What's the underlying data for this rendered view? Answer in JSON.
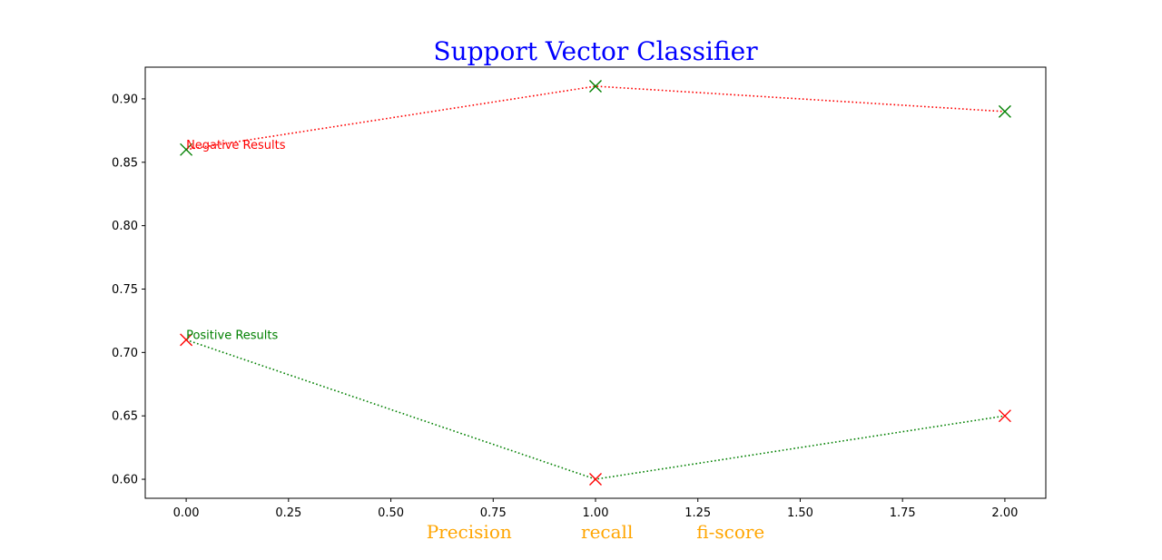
{
  "chart_data": {
    "type": "line",
    "title": "Support Vector Classifier",
    "title_color": "#0000ff",
    "xlabel": "Precision            recall           fi-score",
    "xlabel_color": "#ffa500",
    "ylabel": "",
    "xlim": [
      -0.1,
      2.1
    ],
    "ylim": [
      0.585,
      0.925
    ],
    "x_ticks": [
      0.0,
      0.25,
      0.5,
      0.75,
      1.0,
      1.25,
      1.5,
      1.75,
      2.0
    ],
    "x_tick_labels": [
      "0.00",
      "0.25",
      "0.50",
      "0.75",
      "1.00",
      "1.25",
      "1.50",
      "1.75",
      "2.00"
    ],
    "y_ticks": [
      0.6,
      0.65,
      0.7,
      0.75,
      0.8,
      0.85,
      0.9
    ],
    "y_tick_labels": [
      "0.60",
      "0.65",
      "0.70",
      "0.75",
      "0.80",
      "0.85",
      "0.90"
    ],
    "grid": false,
    "series": [
      {
        "x": [
          0,
          1,
          2
        ],
        "values": [
          0.86,
          0.91,
          0.89
        ],
        "line_color": "#ff0000",
        "marker_color": "#008000",
        "line_style": "dotted",
        "marker": "x"
      },
      {
        "x": [
          0,
          1,
          2
        ],
        "values": [
          0.71,
          0.6,
          0.65
        ],
        "line_color": "#008000",
        "marker_color": "#ff0000",
        "line_style": "dotted",
        "marker": "x"
      }
    ],
    "annotations": [
      {
        "text": "Negative Results",
        "x": 0,
        "y": 0.86,
        "color": "#ff0000"
      },
      {
        "text": "Positive Results",
        "x": 0,
        "y": 0.71,
        "color": "#008000"
      }
    ]
  }
}
